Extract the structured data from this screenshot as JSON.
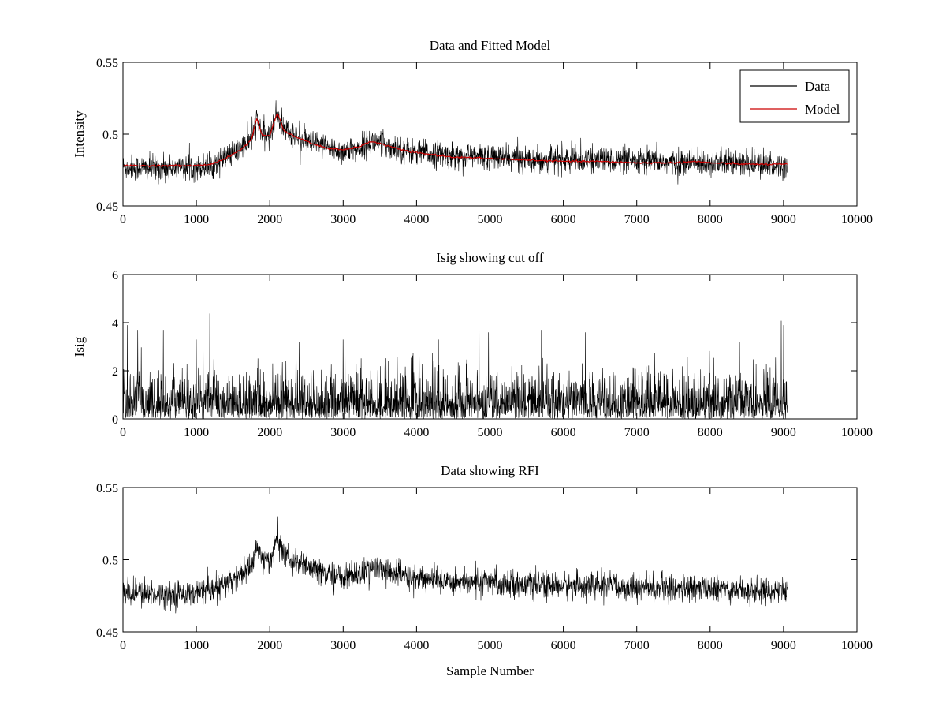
{
  "chart_data": [
    {
      "type": "line",
      "title": "Data and Fitted Model",
      "xlabel": "",
      "ylabel": "Intensity",
      "xlim": [
        0,
        10000
      ],
      "ylim": [
        0.45,
        0.55
      ],
      "xticks": [
        "0",
        "1000",
        "2000",
        "3000",
        "4000",
        "5000",
        "6000",
        "7000",
        "8000",
        "9000",
        "10000"
      ],
      "yticks": [
        "0.45",
        "0.5",
        "0.55"
      ],
      "grid": false,
      "legend": {
        "placement": "top-right",
        "entries": [
          "Data",
          "Model"
        ]
      },
      "series": [
        {
          "name": "Data",
          "color": "#000000",
          "kind": "noisy",
          "noise": 0.0045,
          "x": [
            0,
            500,
            1000,
            1200,
            1400,
            1600,
            1750,
            1820,
            1900,
            2000,
            2100,
            2200,
            2400,
            2600,
            2800,
            3000,
            3200,
            3400,
            3600,
            3800,
            4000,
            4500,
            5000,
            5500,
            6000,
            6500,
            7000,
            7500,
            8000,
            8500,
            9050
          ],
          "values": [
            0.477,
            0.476,
            0.477,
            0.478,
            0.483,
            0.49,
            0.496,
            0.51,
            0.5,
            0.499,
            0.515,
            0.503,
            0.497,
            0.493,
            0.49,
            0.488,
            0.49,
            0.495,
            0.492,
            0.489,
            0.487,
            0.485,
            0.484,
            0.483,
            0.482,
            0.482,
            0.481,
            0.48,
            0.48,
            0.479,
            0.478
          ]
        },
        {
          "name": "Model",
          "color": "#cc0000",
          "kind": "smooth",
          "x": [
            0,
            500,
            1000,
            1200,
            1400,
            1600,
            1750,
            1820,
            1900,
            2000,
            2100,
            2200,
            2400,
            2600,
            2800,
            3000,
            3200,
            3400,
            3600,
            3800,
            4000,
            4500,
            5000,
            5500,
            6000,
            6500,
            7000,
            7500,
            7800,
            8000,
            8500,
            9050
          ],
          "values": [
            0.478,
            0.478,
            0.478,
            0.479,
            0.483,
            0.489,
            0.496,
            0.511,
            0.499,
            0.499,
            0.515,
            0.502,
            0.497,
            0.493,
            0.49,
            0.489,
            0.491,
            0.495,
            0.492,
            0.489,
            0.487,
            0.484,
            0.483,
            0.482,
            0.481,
            0.481,
            0.48,
            0.48,
            0.481,
            0.48,
            0.479,
            0.479
          ]
        }
      ]
    },
    {
      "type": "line",
      "title": "Isig showing cut off",
      "xlabel": "",
      "ylabel": "Isig",
      "xlim": [
        0,
        10000
      ],
      "ylim": [
        0,
        6
      ],
      "xticks": [
        "0",
        "1000",
        "2000",
        "3000",
        "4000",
        "5000",
        "6000",
        "7000",
        "8000",
        "9000",
        "10000"
      ],
      "yticks": [
        "0",
        "2",
        "4",
        "6"
      ],
      "grid": false,
      "series": [
        {
          "name": "Isig",
          "color": "#000000",
          "kind": "halfnormal",
          "x": [
            0,
            9050
          ],
          "values": [
            0.8,
            0.8
          ],
          "noise": 0.9,
          "peaks": [
            [
              60,
              3.9
            ],
            [
              200,
              3.7
            ],
            [
              550,
              3.7
            ],
            [
              1000,
              3.3
            ],
            [
              1650,
              3.2
            ],
            [
              2400,
              3.2
            ],
            [
              3000,
              3.3
            ],
            [
              4300,
              3.3
            ],
            [
              4850,
              3.7
            ],
            [
              4980,
              3.6
            ],
            [
              5700,
              3.7
            ],
            [
              6300,
              3.6
            ],
            [
              8400,
              3.2
            ],
            [
              9000,
              3.9
            ]
          ]
        }
      ]
    },
    {
      "type": "line",
      "title": "Data showing RFI",
      "xlabel": "Sample Number",
      "ylabel": "",
      "xlim": [
        0,
        10000
      ],
      "ylim": [
        0.45,
        0.55
      ],
      "xticks": [
        "0",
        "1000",
        "2000",
        "3000",
        "4000",
        "5000",
        "6000",
        "7000",
        "8000",
        "9000",
        "10000"
      ],
      "yticks": [
        "0.45",
        "0.5",
        "0.55"
      ],
      "grid": false,
      "series": [
        {
          "name": "Data",
          "color": "#000000",
          "kind": "noisy",
          "noise": 0.0045,
          "x": [
            0,
            500,
            1000,
            1200,
            1400,
            1600,
            1750,
            1820,
            1900,
            2000,
            2100,
            2200,
            2400,
            2600,
            2800,
            3000,
            3200,
            3400,
            3600,
            3800,
            4000,
            4500,
            5000,
            5500,
            6000,
            6500,
            7000,
            7500,
            8000,
            8500,
            9050
          ],
          "values": [
            0.477,
            0.476,
            0.477,
            0.478,
            0.483,
            0.49,
            0.496,
            0.51,
            0.5,
            0.499,
            0.515,
            0.503,
            0.497,
            0.493,
            0.49,
            0.488,
            0.49,
            0.495,
            0.492,
            0.489,
            0.487,
            0.485,
            0.484,
            0.483,
            0.482,
            0.482,
            0.481,
            0.48,
            0.48,
            0.479,
            0.478
          ]
        }
      ]
    }
  ]
}
